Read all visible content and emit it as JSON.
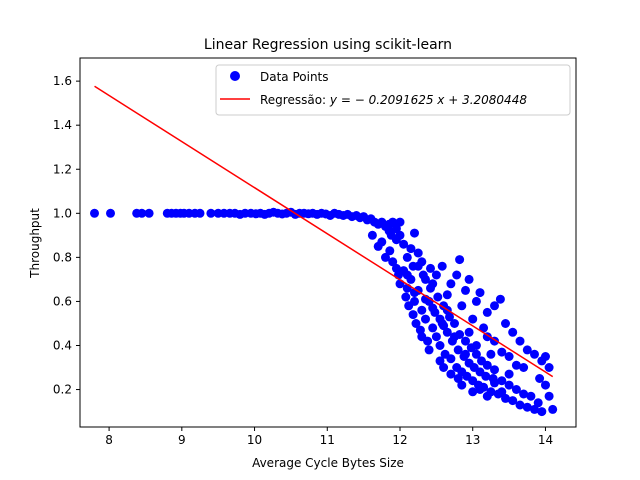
{
  "chart_data": {
    "type": "scatter",
    "title": "Linear Regression using scikit-learn",
    "xlabel": "Average Cycle Bytes Size",
    "ylabel": "Throughput",
    "xlim": [
      7.6,
      14.42
    ],
    "ylim": [
      0.03,
      1.705
    ],
    "xticks": [
      8,
      9,
      10,
      11,
      12,
      13,
      14
    ],
    "yticks": [
      0.2,
      0.4,
      0.6,
      0.8,
      1.0,
      1.2,
      1.4,
      1.6
    ],
    "grid": false,
    "legend_position": "top-right",
    "series": [
      {
        "name": "Data Points",
        "kind": "scatter",
        "color": "#0000ff",
        "points": [
          [
            7.8,
            1.0
          ],
          [
            8.02,
            1.0
          ],
          [
            8.38,
            1.0
          ],
          [
            8.45,
            1.0
          ],
          [
            8.55,
            1.0
          ],
          [
            8.8,
            1.0
          ],
          [
            8.86,
            1.0
          ],
          [
            8.92,
            1.0
          ],
          [
            8.98,
            1.0
          ],
          [
            9.03,
            1.0
          ],
          [
            9.1,
            1.0
          ],
          [
            9.18,
            1.0
          ],
          [
            9.25,
            1.0
          ],
          [
            9.4,
            1.0
          ],
          [
            9.5,
            1.0
          ],
          [
            9.58,
            1.0
          ],
          [
            9.66,
            1.0
          ],
          [
            9.73,
            1.0
          ],
          [
            9.8,
            0.995
          ],
          [
            9.87,
            1.0
          ],
          [
            9.95,
            1.0
          ],
          [
            10.02,
            0.998
          ],
          [
            10.08,
            1.0
          ],
          [
            10.14,
            0.995
          ],
          [
            10.2,
            1.0
          ],
          [
            10.26,
            1.005
          ],
          [
            10.32,
            1.0
          ],
          [
            10.38,
            0.997
          ],
          [
            10.44,
            1.0
          ],
          [
            10.5,
            1.005
          ],
          [
            10.56,
            0.995
          ],
          [
            10.62,
            1.0
          ],
          [
            10.68,
            1.0
          ],
          [
            10.74,
            0.998
          ],
          [
            10.8,
            1.0
          ],
          [
            10.86,
            0.995
          ],
          [
            10.92,
            1.0
          ],
          [
            10.98,
            0.997
          ],
          [
            11.04,
            0.99
          ],
          [
            11.1,
            1.0
          ],
          [
            11.16,
            0.995
          ],
          [
            11.22,
            0.99
          ],
          [
            11.28,
            0.995
          ],
          [
            11.34,
            0.985
          ],
          [
            11.4,
            0.99
          ],
          [
            11.45,
            0.98
          ],
          [
            11.5,
            0.985
          ],
          [
            11.55,
            0.97
          ],
          [
            11.6,
            0.975
          ],
          [
            11.65,
            0.96
          ],
          [
            11.7,
            0.95
          ],
          [
            11.75,
            0.96
          ],
          [
            11.8,
            0.94
          ],
          [
            11.85,
            0.95
          ],
          [
            11.9,
            0.96
          ],
          [
            11.95,
            0.93
          ],
          [
            12.0,
            0.96
          ],
          [
            12.2,
            0.91
          ],
          [
            12.25,
            0.82
          ],
          [
            11.62,
            0.9
          ],
          [
            11.7,
            0.85
          ],
          [
            11.75,
            0.87
          ],
          [
            11.8,
            0.8
          ],
          [
            11.86,
            0.83
          ],
          [
            11.9,
            0.78
          ],
          [
            11.95,
            0.75
          ],
          [
            11.88,
            0.9
          ],
          [
            11.98,
            0.72
          ],
          [
            12.0,
            0.68
          ],
          [
            12.05,
            0.74
          ],
          [
            12.08,
            0.62
          ],
          [
            12.1,
            0.66
          ],
          [
            12.12,
            0.58
          ],
          [
            12.15,
            0.7
          ],
          [
            12.18,
            0.54
          ],
          [
            12.2,
            0.6
          ],
          [
            12.22,
            0.5
          ],
          [
            12.25,
            0.65
          ],
          [
            12.28,
            0.47
          ],
          [
            12.3,
            0.56
          ],
          [
            12.32,
            0.72
          ],
          [
            12.35,
            0.52
          ],
          [
            12.38,
            0.42
          ],
          [
            12.4,
            0.6
          ],
          [
            12.42,
            0.66
          ],
          [
            12.45,
            0.48
          ],
          [
            12.48,
            0.55
          ],
          [
            12.5,
            0.44
          ],
          [
            12.52,
            0.62
          ],
          [
            12.55,
            0.4
          ],
          [
            12.58,
            0.5
          ],
          [
            12.6,
            0.58
          ],
          [
            12.62,
            0.36
          ],
          [
            12.65,
            0.46
          ],
          [
            12.68,
            0.53
          ],
          [
            12.7,
            0.34
          ],
          [
            12.72,
            0.42
          ],
          [
            12.75,
            0.5
          ],
          [
            12.78,
            0.3
          ],
          [
            12.8,
            0.38
          ],
          [
            12.82,
            0.45
          ],
          [
            12.85,
            0.28
          ],
          [
            12.88,
            0.35
          ],
          [
            12.9,
            0.42
          ],
          [
            12.92,
            0.26
          ],
          [
            12.95,
            0.32
          ],
          [
            12.98,
            0.39
          ],
          [
            13.0,
            0.24
          ],
          [
            13.02,
            0.3
          ],
          [
            13.05,
            0.36
          ],
          [
            13.08,
            0.22
          ],
          [
            13.1,
            0.28
          ],
          [
            13.12,
            0.33
          ],
          [
            13.15,
            0.21
          ],
          [
            13.18,
            0.26
          ],
          [
            13.2,
            0.31
          ],
          [
            13.25,
            0.19
          ],
          [
            13.28,
            0.25
          ],
          [
            13.3,
            0.29
          ],
          [
            13.35,
            0.18
          ],
          [
            13.4,
            0.24
          ],
          [
            13.45,
            0.16
          ],
          [
            13.5,
            0.22
          ],
          [
            13.55,
            0.15
          ],
          [
            13.6,
            0.2
          ],
          [
            13.65,
            0.13
          ],
          [
            13.7,
            0.18
          ],
          [
            13.75,
            0.12
          ],
          [
            13.8,
            0.17
          ],
          [
            13.85,
            0.11
          ],
          [
            13.9,
            0.14
          ],
          [
            13.95,
            0.1
          ],
          [
            14.1,
            0.11
          ],
          [
            12.1,
            0.8
          ],
          [
            12.18,
            0.76
          ],
          [
            12.3,
            0.78
          ],
          [
            12.42,
            0.75
          ],
          [
            12.5,
            0.72
          ],
          [
            12.58,
            0.76
          ],
          [
            12.7,
            0.68
          ],
          [
            12.78,
            0.72
          ],
          [
            12.82,
            0.79
          ],
          [
            12.9,
            0.65
          ],
          [
            12.95,
            0.7
          ],
          [
            13.05,
            0.6
          ],
          [
            13.1,
            0.64
          ],
          [
            13.2,
            0.55
          ],
          [
            13.3,
            0.58
          ],
          [
            13.38,
            0.61
          ],
          [
            13.45,
            0.5
          ],
          [
            13.55,
            0.46
          ],
          [
            13.65,
            0.42
          ],
          [
            13.75,
            0.38
          ],
          [
            13.85,
            0.36
          ],
          [
            13.95,
            0.33
          ],
          [
            14.0,
            0.35
          ],
          [
            14.05,
            0.3
          ],
          [
            13.92,
            0.25
          ],
          [
            14.0,
            0.22
          ],
          [
            14.05,
            0.17
          ],
          [
            13.7,
            0.3
          ],
          [
            13.5,
            0.35
          ],
          [
            13.3,
            0.42
          ],
          [
            13.15,
            0.48
          ],
          [
            13.0,
            0.52
          ],
          [
            12.85,
            0.58
          ],
          [
            12.65,
            0.63
          ],
          [
            12.45,
            0.68
          ],
          [
            12.35,
            0.7
          ],
          [
            12.25,
            0.76
          ],
          [
            12.15,
            0.84
          ],
          [
            12.05,
            0.86
          ],
          [
            11.95,
            0.88
          ],
          [
            11.85,
            0.92
          ],
          [
            12.0,
            0.9
          ],
          [
            12.4,
            0.38
          ],
          [
            12.55,
            0.33
          ],
          [
            12.7,
            0.27
          ],
          [
            12.85,
            0.22
          ],
          [
            13.0,
            0.19
          ],
          [
            13.2,
            0.17
          ],
          [
            13.4,
            0.19
          ],
          [
            12.6,
            0.3
          ],
          [
            12.8,
            0.25
          ],
          [
            13.1,
            0.2
          ],
          [
            13.3,
            0.23
          ],
          [
            13.5,
            0.27
          ],
          [
            13.6,
            0.31
          ],
          [
            13.4,
            0.37
          ],
          [
            12.3,
            0.44
          ],
          [
            12.45,
            0.57
          ],
          [
            12.6,
            0.49
          ],
          [
            12.75,
            0.44
          ],
          [
            12.9,
            0.36
          ],
          [
            13.05,
            0.4
          ],
          [
            13.2,
            0.44
          ],
          [
            13.25,
            0.36
          ],
          [
            12.95,
            0.46
          ],
          [
            12.65,
            0.56
          ],
          [
            12.2,
            0.64
          ],
          [
            12.1,
            0.72
          ],
          [
            12.35,
            0.61
          ],
          [
            12.55,
            0.52
          ]
        ]
      },
      {
        "name": "Regressão: y = − 0.2091625 x + 3.2080448",
        "kind": "line",
        "color": "#ff0000",
        "slope": -0.2091625,
        "intercept": 3.2080448,
        "x": [
          7.8,
          14.1
        ]
      }
    ]
  },
  "legend": {
    "scatter_label": "Data Points",
    "line_label_prefix": "Regressão: ",
    "line_label_math": "y = − 0.2091625 x + 3.2080448"
  }
}
